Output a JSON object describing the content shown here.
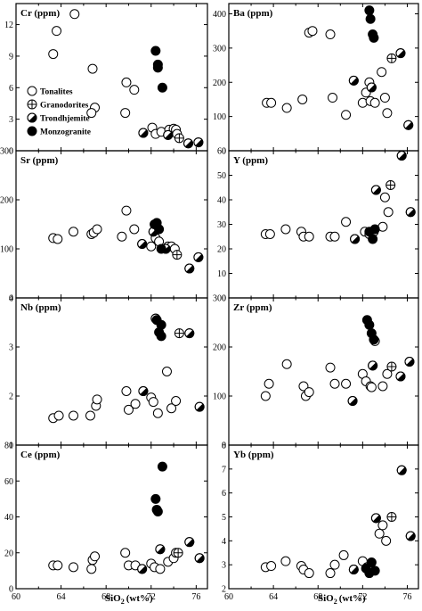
{
  "figure": {
    "xlabel": "SiO",
    "xlabel_sub": "2",
    "xlabel_unit": "(wt%)",
    "x_tick_labels": [
      "60",
      "64",
      "68",
      "72",
      "76"
    ]
  },
  "legend": {
    "items": [
      {
        "symbol": "open",
        "label": "Tonalites"
      },
      {
        "symbol": "cross",
        "label": "Granodorites"
      },
      {
        "symbol": "half",
        "label": "Trondhjemite"
      },
      {
        "symbol": "solid",
        "label": "Monzogranite"
      }
    ]
  },
  "chart_data": [
    {
      "type": "scatter",
      "title": "Cr (ppm)",
      "xlim": [
        60,
        77
      ],
      "ylim": [
        0,
        14
      ],
      "yticks": [
        0,
        3,
        6,
        9,
        12
      ],
      "series": [
        {
          "name": "Tonalites",
          "x": [
            63.3,
            63.6,
            65.2,
            66.8,
            67.0,
            66.7,
            69.8,
            70.5,
            69.7,
            72.1,
            72.4,
            72.9,
            73.6,
            74.0,
            74.2,
            74.3
          ],
          "y": [
            9.2,
            11.4,
            13.0,
            7.8,
            4.1,
            3.6,
            6.5,
            5.8,
            3.6,
            2.2,
            1.6,
            1.8,
            2.0,
            2.1,
            2.0,
            1.6
          ]
        },
        {
          "name": "Granodorites",
          "x": [
            74.5
          ],
          "y": [
            1.2
          ]
        },
        {
          "name": "Trondhjemite",
          "x": [
            71.3,
            73.5,
            75.3,
            76.2
          ],
          "y": [
            1.7,
            1.5,
            0.7,
            0.8
          ]
        },
        {
          "name": "Monzogranite",
          "x": [
            72.4,
            72.6,
            72.6,
            73.0
          ],
          "y": [
            9.5,
            8.2,
            7.9,
            6.0
          ]
        }
      ]
    },
    {
      "type": "scatter",
      "title": "Ba (ppm)",
      "xlim": [
        60,
        77
      ],
      "ylim": [
        0,
        430
      ],
      "yticks": [
        0,
        100,
        200,
        300,
        400
      ],
      "series": [
        {
          "name": "Tonalites",
          "x": [
            63.4,
            63.8,
            65.2,
            66.6,
            67.2,
            67.5,
            69.1,
            69.3,
            70.5,
            72.0,
            72.3,
            72.7,
            73.1,
            73.7,
            74.0,
            74.2,
            72.6
          ],
          "y": [
            140,
            140,
            125,
            150,
            345,
            350,
            340,
            155,
            105,
            140,
            170,
            145,
            140,
            230,
            155,
            110,
            200
          ]
        },
        {
          "name": "Granodorites",
          "x": [
            74.6
          ],
          "y": [
            270
          ]
        },
        {
          "name": "Trondhjemite",
          "x": [
            71.2,
            72.8,
            75.4,
            76.1
          ],
          "y": [
            205,
            185,
            285,
            75
          ]
        },
        {
          "name": "Monzogranite",
          "x": [
            72.6,
            72.7,
            72.9,
            73.0
          ],
          "y": [
            410,
            385,
            340,
            330
          ]
        }
      ]
    },
    {
      "type": "scatter",
      "title": "Sr (ppm)",
      "xlim": [
        60,
        77
      ],
      "ylim": [
        0,
        300
      ],
      "yticks": [
        0,
        100,
        200,
        300
      ],
      "series": [
        {
          "name": "Tonalites",
          "x": [
            63.3,
            63.7,
            65.1,
            66.7,
            66.9,
            67.2,
            69.4,
            69.8,
            70.5,
            72.0,
            72.4,
            72.7,
            73.5,
            73.8,
            74.1
          ],
          "y": [
            122,
            120,
            135,
            130,
            133,
            140,
            125,
            178,
            140,
            105,
            122,
            115,
            105,
            105,
            100
          ]
        },
        {
          "name": "Granodorites",
          "x": [
            74.3
          ],
          "y": [
            88
          ]
        },
        {
          "name": "Trondhjemite",
          "x": [
            71.2,
            72.2,
            73.3,
            75.4,
            76.2
          ],
          "y": [
            110,
            135,
            100,
            60,
            83
          ]
        },
        {
          "name": "Monzogranite",
          "x": [
            72.3,
            72.5,
            72.7,
            72.9
          ],
          "y": [
            150,
            153,
            140,
            100
          ]
        }
      ]
    },
    {
      "type": "scatter",
      "title": "Y (ppm)",
      "xlim": [
        60,
        77
      ],
      "ylim": [
        0,
        60
      ],
      "yticks": [
        0,
        10,
        20,
        30,
        40,
        50,
        60
      ],
      "series": [
        {
          "name": "Tonalites",
          "x": [
            63.3,
            63.7,
            65.1,
            66.5,
            66.7,
            67.2,
            69.1,
            69.5,
            70.5,
            72.2,
            72.6,
            73.0,
            73.8,
            74.0,
            74.3
          ],
          "y": [
            26,
            26,
            28,
            27,
            25,
            25,
            25,
            25,
            31,
            27,
            26,
            27,
            29,
            41,
            35
          ]
        },
        {
          "name": "Granodorites",
          "x": [
            74.5
          ],
          "y": [
            46
          ]
        },
        {
          "name": "Trondhjemite",
          "x": [
            71.3,
            73.2,
            75.5,
            76.3
          ],
          "y": [
            24,
            44,
            58,
            35
          ]
        },
        {
          "name": "Monzogranite",
          "x": [
            72.6,
            72.9,
            73.1
          ],
          "y": [
            27,
            24,
            28
          ]
        }
      ]
    },
    {
      "type": "scatter",
      "title": "Nb (ppm)",
      "xlim": [
        60,
        77
      ],
      "ylim": [
        1,
        4
      ],
      "yticks": [
        1,
        2,
        3,
        4
      ],
      "series": [
        {
          "name": "Tonalites",
          "x": [
            63.3,
            63.8,
            65.1,
            66.6,
            67.1,
            67.2,
            69.8,
            70.0,
            70.6,
            72.0,
            72.2,
            72.6,
            73.4,
            73.8,
            74.2
          ],
          "y": [
            1.55,
            1.6,
            1.6,
            1.6,
            1.8,
            1.93,
            2.1,
            1.72,
            1.84,
            1.97,
            1.88,
            1.65,
            2.5,
            1.75,
            1.9
          ]
        },
        {
          "name": "Granodorites",
          "x": [
            74.5
          ],
          "y": [
            3.28
          ]
        },
        {
          "name": "Trondhjemite",
          "x": [
            71.3,
            72.4,
            75.4,
            76.3
          ],
          "y": [
            2.1,
            3.58,
            3.28,
            1.78
          ]
        },
        {
          "name": "Monzogranite",
          "x": [
            72.5,
            72.7,
            72.9,
            72.9
          ],
          "y": [
            3.55,
            3.3,
            3.22,
            3.45
          ]
        }
      ]
    },
    {
      "type": "scatter",
      "title": "Zr (ppm)",
      "xlim": [
        60,
        77
      ],
      "ylim": [
        0,
        300
      ],
      "yticks": [
        0,
        100,
        200,
        300
      ],
      "series": [
        {
          "name": "Tonalites",
          "x": [
            63.3,
            63.6,
            65.2,
            66.7,
            66.9,
            67.2,
            69.1,
            69.5,
            70.5,
            72.0,
            72.3,
            72.7,
            73.1,
            73.8,
            74.2,
            72.8
          ],
          "y": [
            100,
            125,
            165,
            120,
            100,
            108,
            158,
            125,
            125,
            145,
            130,
            120,
            212,
            120,
            145,
            118
          ]
        },
        {
          "name": "Granodorites",
          "x": [
            74.6
          ],
          "y": [
            160
          ]
        },
        {
          "name": "Trondhjemite",
          "x": [
            71.1,
            72.9,
            75.4,
            76.2
          ],
          "y": [
            90,
            162,
            140,
            170
          ]
        },
        {
          "name": "Monzogranite",
          "x": [
            72.4,
            72.6,
            72.8,
            73.0
          ],
          "y": [
            255,
            245,
            228,
            215
          ]
        }
      ]
    },
    {
      "type": "scatter",
      "title": "Ce (ppm)",
      "xlim": [
        60,
        77
      ],
      "ylim": [
        0,
        80
      ],
      "yticks": [
        0,
        20,
        40,
        60,
        80
      ],
      "series": [
        {
          "name": "Tonalites",
          "x": [
            63.3,
            63.7,
            65.1,
            66.7,
            66.8,
            67.0,
            69.7,
            70.0,
            70.6,
            72.0,
            72.3,
            72.8,
            73.5,
            74.0,
            74.2
          ],
          "y": [
            13,
            13,
            12,
            11,
            16,
            18,
            20,
            13,
            13,
            14,
            12,
            11,
            15,
            17,
            20
          ]
        },
        {
          "name": "Granodorites",
          "x": [
            74.4
          ],
          "y": [
            20
          ]
        },
        {
          "name": "Trondhjemite",
          "x": [
            71.2,
            72.8,
            75.4,
            76.3
          ],
          "y": [
            11,
            22,
            26,
            17
          ]
        },
        {
          "name": "Monzogranite",
          "x": [
            72.4,
            72.5,
            72.6,
            73.0
          ],
          "y": [
            50,
            44,
            43,
            68
          ]
        }
      ]
    },
    {
      "type": "scatter",
      "title": "Yb (ppm)",
      "xlim": [
        60,
        77
      ],
      "ylim": [
        2,
        8
      ],
      "yticks": [
        2,
        3,
        4,
        5,
        6,
        7,
        8
      ],
      "series": [
        {
          "name": "Tonalites",
          "x": [
            63.3,
            63.8,
            65.1,
            66.5,
            66.7,
            67.2,
            69.1,
            69.5,
            70.3,
            72.0,
            72.4,
            72.8,
            73.5,
            73.8,
            74.1
          ],
          "y": [
            2.9,
            2.95,
            3.15,
            2.95,
            2.8,
            2.65,
            2.65,
            3.0,
            3.4,
            3.15,
            2.9,
            2.8,
            4.3,
            4.65,
            4.0
          ]
        },
        {
          "name": "Granodorites",
          "x": [
            74.6
          ],
          "y": [
            5.0
          ]
        },
        {
          "name": "Trondhjemite",
          "x": [
            71.2,
            73.2,
            75.5,
            76.3
          ],
          "y": [
            2.8,
            4.95,
            6.95,
            4.2
          ]
        },
        {
          "name": "Monzogranite",
          "x": [
            72.3,
            72.6,
            72.8,
            73.1
          ],
          "y": [
            2.85,
            2.65,
            3.1,
            2.75
          ]
        }
      ]
    }
  ]
}
